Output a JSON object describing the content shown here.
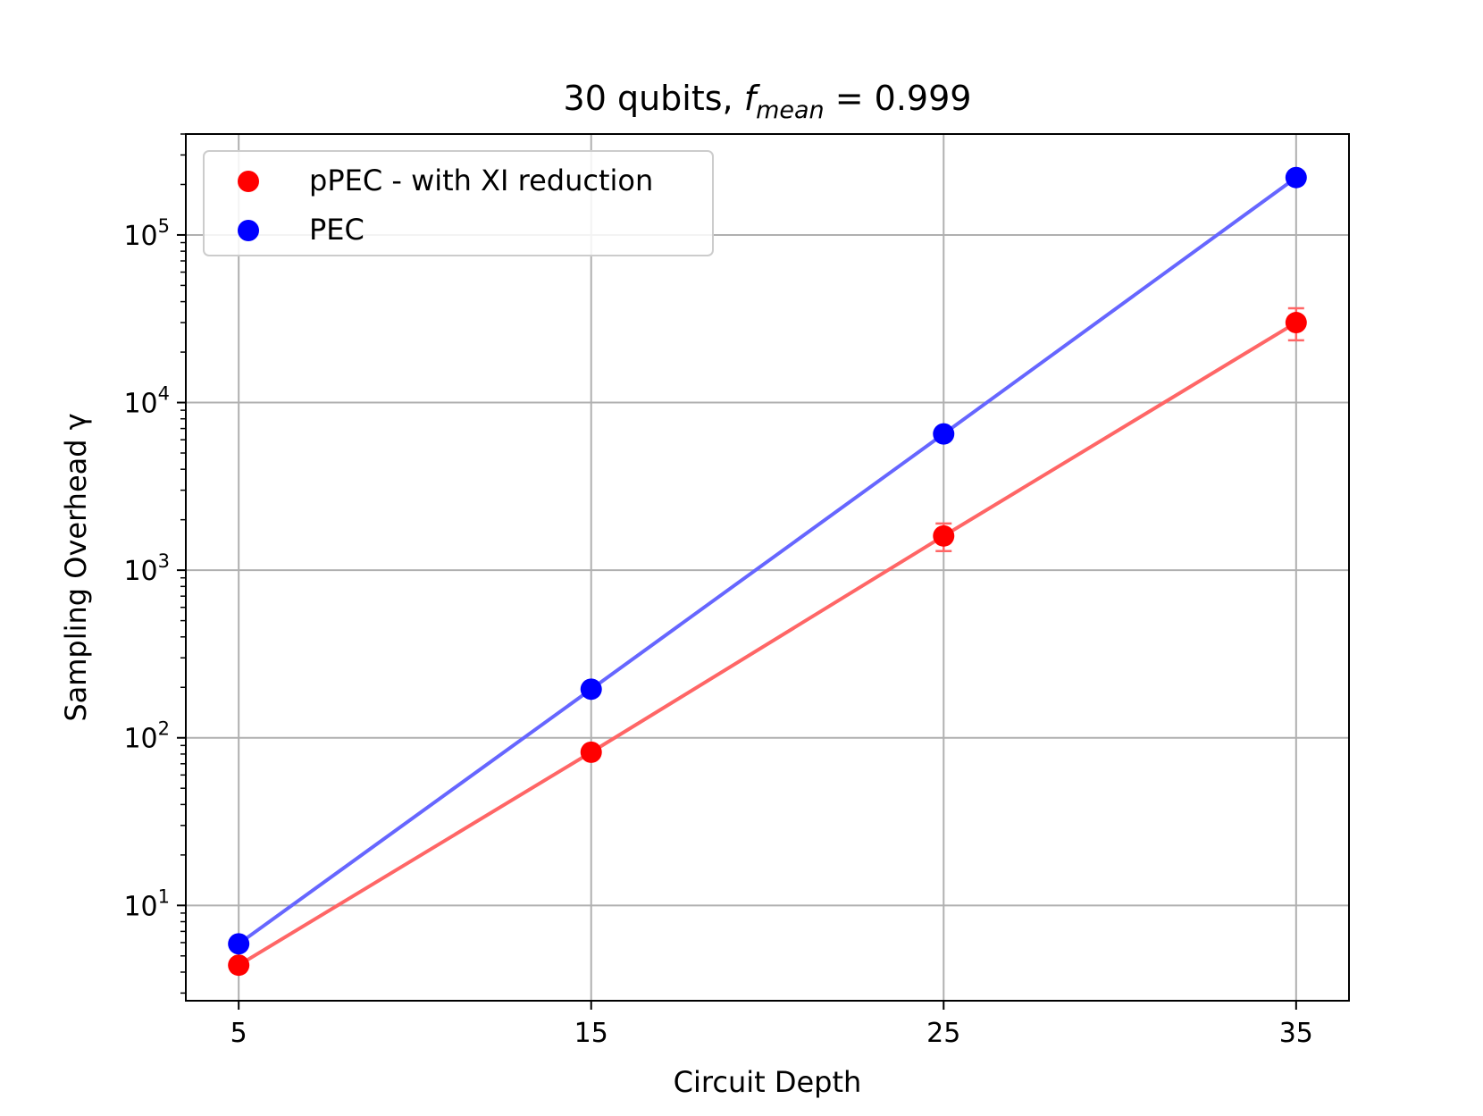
{
  "chart_data": {
    "type": "scatter",
    "title": {
      "main": "30 qubits, ",
      "f_symbol": "f",
      "f_subscript": "mean",
      "suffix": " = 0.999"
    },
    "xlabel": "Circuit Depth",
    "ylabel": "Sampling Overhead γ",
    "x_scale": "linear",
    "y_scale": "log",
    "xlim": [
      3.5,
      36.5
    ],
    "ylim": [
      2.7,
      400000
    ],
    "x_ticks": [
      5,
      15,
      25,
      35
    ],
    "x_tick_labels": [
      "5",
      "15",
      "25",
      "35"
    ],
    "y_major_ticks": [
      {
        "value": 10,
        "base": "10",
        "exp": "1"
      },
      {
        "value": 100,
        "base": "10",
        "exp": "2"
      },
      {
        "value": 1000,
        "base": "10",
        "exp": "3"
      },
      {
        "value": 10000,
        "base": "10",
        "exp": "4"
      },
      {
        "value": 100000,
        "base": "10",
        "exp": "5"
      }
    ],
    "grid": true,
    "legend_position": "top-left",
    "series": [
      {
        "name": "pPEC - with XI reduction",
        "marker_color": "#ff0000",
        "line_color": "#ff6666",
        "x": [
          5,
          15,
          25,
          35
        ],
        "y": [
          4.4,
          82,
          1600,
          30000
        ],
        "y_err_low": [
          0,
          0,
          300,
          6500
        ],
        "y_err_high": [
          0,
          0,
          300,
          6500
        ]
      },
      {
        "name": "PEC",
        "marker_color": "#0000ff",
        "line_color": "#6666ff",
        "x": [
          5,
          15,
          25,
          35
        ],
        "y": [
          5.9,
          195,
          6500,
          220000
        ],
        "y_err_low": [
          0,
          0,
          0,
          0
        ],
        "y_err_high": [
          0,
          0,
          0,
          0
        ]
      }
    ]
  }
}
